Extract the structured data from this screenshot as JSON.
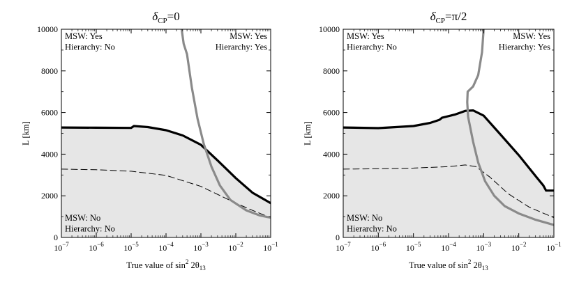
{
  "chart_data": [
    {
      "type": "area",
      "title": "δ_CP=0",
      "title_parts": {
        "symbol": "δ",
        "sub": "CP",
        "rest": "=0"
      },
      "xlabel": "True value of sin²2θ₁₃",
      "xlabel_parts": {
        "main": "True value of sin",
        "sup": "2",
        "mid": " 2θ",
        "sub": "13"
      },
      "ylabel": "L [km]",
      "xscale": "log",
      "xlim": [
        1e-07,
        0.1
      ],
      "ylim": [
        0,
        10000
      ],
      "x_ticks": [
        {
          "value": 1e-07,
          "base": "10",
          "exp": "−7"
        },
        {
          "value": 1e-06,
          "base": "10",
          "exp": "−6"
        },
        {
          "value": 1e-05,
          "base": "10",
          "exp": "−5"
        },
        {
          "value": 0.0001,
          "base": "10",
          "exp": "−4"
        },
        {
          "value": 0.001,
          "base": "10",
          "exp": "−3"
        },
        {
          "value": 0.01,
          "base": "10",
          "exp": "−2"
        },
        {
          "value": 0.1,
          "base": "10",
          "exp": "−1"
        }
      ],
      "y_ticks": [
        0,
        2000,
        4000,
        6000,
        8000,
        10000
      ],
      "grid": false,
      "annotations": [
        {
          "lines": [
            "MSW: Yes",
            "Hierarchy: No"
          ],
          "position": "top-left"
        },
        {
          "lines": [
            "MSW: Yes",
            "Hierarchy: Yes"
          ],
          "position": "top-right"
        },
        {
          "lines": [
            "MSW: No",
            "Hierarchy: No"
          ],
          "position": "bottom-left"
        }
      ],
      "colors": {
        "fill": "#e6e6e6",
        "thick": "#000000",
        "gray": "#8a8a8a",
        "dashed": "#000000"
      },
      "series": [
        {
          "style": "thick-black",
          "points": [
            [
              1e-07,
              5280
            ],
            [
              1e-06,
              5270
            ],
            [
              1e-05,
              5260
            ],
            [
              1.2e-05,
              5350
            ],
            [
              3e-05,
              5300
            ],
            [
              0.0001,
              5150
            ],
            [
              0.0003,
              4900
            ],
            [
              0.001,
              4450
            ],
            [
              0.003,
              3700
            ],
            [
              0.01,
              2850
            ],
            [
              0.03,
              2150
            ],
            [
              0.1,
              1650
            ]
          ]
        },
        {
          "style": "dashed-black",
          "points": [
            [
              1e-07,
              3280
            ],
            [
              1e-06,
              3250
            ],
            [
              1e-05,
              3180
            ],
            [
              0.0001,
              2980
            ],
            [
              0.001,
              2450
            ],
            [
              0.01,
              1650
            ],
            [
              0.03,
              1300
            ],
            [
              0.1,
              950
            ]
          ]
        },
        {
          "style": "thick-gray",
          "points": [
            [
              0.00028,
              10000
            ],
            [
              0.00032,
              9300
            ],
            [
              0.0004,
              8800
            ],
            [
              0.00055,
              7200
            ],
            [
              0.0008,
              5700
            ],
            [
              0.0012,
              4500
            ],
            [
              0.002,
              3400
            ],
            [
              0.0035,
              2500
            ],
            [
              0.007,
              1800
            ],
            [
              0.02,
              1300
            ],
            [
              0.05,
              1050
            ],
            [
              0.1,
              950
            ]
          ]
        }
      ],
      "shaded_region": "below thick black curve"
    },
    {
      "type": "area",
      "title": "δ_CP=π/2",
      "title_parts": {
        "symbol": "δ",
        "sub": "CP",
        "rest": "=π/2"
      },
      "xlabel": "True value of sin²2θ₁₃",
      "xlabel_parts": {
        "main": "True value of sin",
        "sup": "2",
        "mid": " 2θ",
        "sub": "13"
      },
      "ylabel": "L [km]",
      "xscale": "log",
      "xlim": [
        1e-07,
        0.1
      ],
      "ylim": [
        0,
        10000
      ],
      "x_ticks": [
        {
          "value": 1e-07,
          "base": "10",
          "exp": "−7"
        },
        {
          "value": 1e-06,
          "base": "10",
          "exp": "−6"
        },
        {
          "value": 1e-05,
          "base": "10",
          "exp": "−5"
        },
        {
          "value": 0.0001,
          "base": "10",
          "exp": "−4"
        },
        {
          "value": 0.001,
          "base": "10",
          "exp": "−3"
        },
        {
          "value": 0.01,
          "base": "10",
          "exp": "−2"
        },
        {
          "value": 0.1,
          "base": "10",
          "exp": "−1"
        }
      ],
      "y_ticks": [
        0,
        2000,
        4000,
        6000,
        8000,
        10000
      ],
      "grid": false,
      "annotations": [
        {
          "lines": [
            "MSW: Yes",
            "Hierarchy: No"
          ],
          "position": "top-left"
        },
        {
          "lines": [
            "MSW: Yes",
            "Hierarchy: Yes"
          ],
          "position": "top-right"
        },
        {
          "lines": [
            "MSW: No",
            "Hierarchy: No"
          ],
          "position": "bottom-left"
        }
      ],
      "colors": {
        "fill": "#e6e6e6",
        "thick": "#000000",
        "gray": "#8a8a8a",
        "dashed": "#000000"
      },
      "series": [
        {
          "style": "thick-black",
          "points": [
            [
              1e-07,
              5280
            ],
            [
              1e-06,
              5250
            ],
            [
              1e-05,
              5350
            ],
            [
              3e-05,
              5500
            ],
            [
              5.5e-05,
              5650
            ],
            [
              6.5e-05,
              5750
            ],
            [
              0.00015,
              5900
            ],
            [
              0.0003,
              6080
            ],
            [
              0.0005,
              6100
            ],
            [
              0.001,
              5850
            ],
            [
              0.003,
              4950
            ],
            [
              0.01,
              3950
            ],
            [
              0.03,
              2950
            ],
            [
              0.05,
              2500
            ],
            [
              0.06,
              2250
            ],
            [
              0.1,
              2250
            ]
          ]
        },
        {
          "style": "dashed-black",
          "points": [
            [
              1e-07,
              3280
            ],
            [
              1e-06,
              3300
            ],
            [
              1e-05,
              3330
            ],
            [
              0.0001,
              3400
            ],
            [
              0.0003,
              3480
            ],
            [
              0.0006,
              3400
            ],
            [
              0.0015,
              2900
            ],
            [
              0.005,
              2100
            ],
            [
              0.02,
              1450
            ],
            [
              0.1,
              950
            ]
          ]
        },
        {
          "style": "thick-gray",
          "points": [
            [
              0.001,
              10000
            ],
            [
              0.0009,
              8900
            ],
            [
              0.0007,
              7800
            ],
            [
              0.0005,
              7250
            ],
            [
              0.00035,
              7000
            ],
            [
              0.00034,
              6500
            ],
            [
              0.00036,
              5800
            ],
            [
              0.0005,
              4600
            ],
            [
              0.0007,
              3600
            ],
            [
              0.0011,
              2700
            ],
            [
              0.002,
              2000
            ],
            [
              0.004,
              1500
            ],
            [
              0.01,
              1150
            ],
            [
              0.03,
              850
            ],
            [
              0.1,
              600
            ]
          ]
        }
      ],
      "shaded_region": "below thick black curve"
    }
  ]
}
